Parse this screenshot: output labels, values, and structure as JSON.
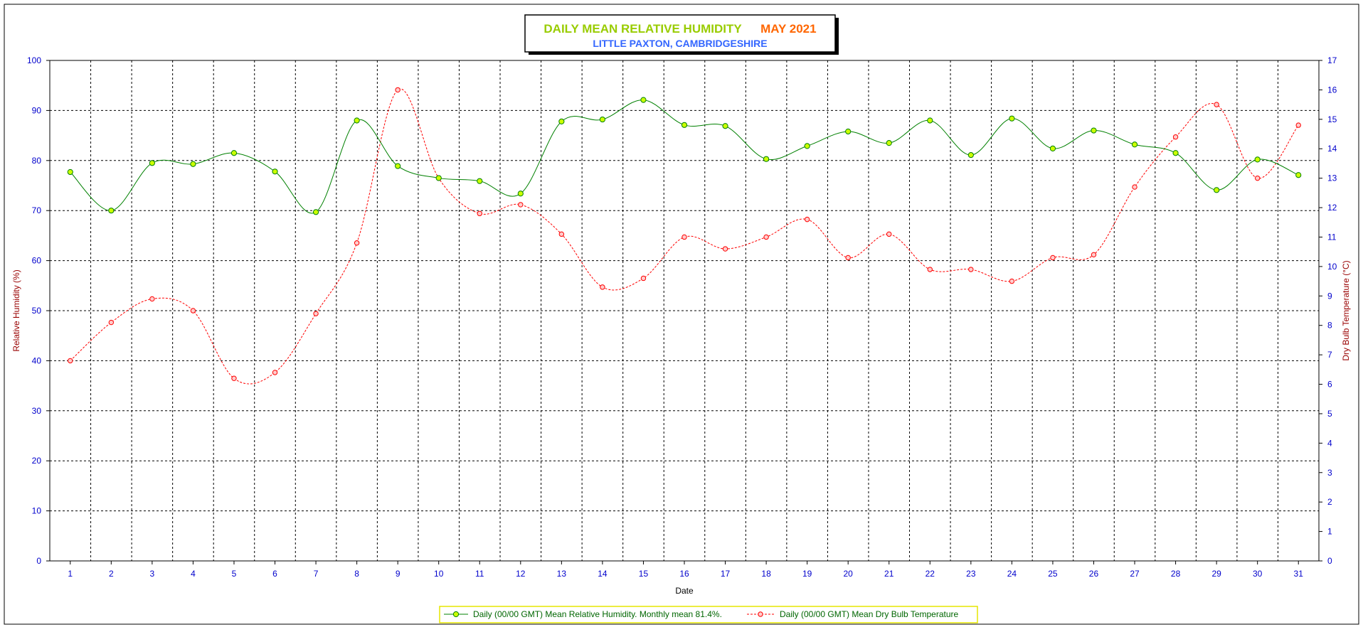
{
  "chart_data": {
    "type": "line",
    "title": {
      "main": "DAILY MEAN RELATIVE HUMIDITY",
      "period": "MAY 2021",
      "location": "LITTLE PAXTON, CAMBRIDGESHIRE"
    },
    "xlabel": "Date",
    "ylabel_left": "Relative Humidity (%)",
    "ylabel_right": "Dry Bulb Temperature (°C)",
    "categories": [
      "1",
      "2",
      "3",
      "4",
      "5",
      "6",
      "7",
      "8",
      "9",
      "10",
      "11",
      "12",
      "13",
      "14",
      "15",
      "16",
      "17",
      "18",
      "19",
      "20",
      "21",
      "22",
      "23",
      "24",
      "25",
      "26",
      "27",
      "28",
      "29",
      "30",
      "31"
    ],
    "left_axis": {
      "min": 0,
      "max": 100,
      "ticks": [
        0,
        10,
        20,
        30,
        40,
        50,
        60,
        70,
        80,
        90,
        100
      ]
    },
    "right_axis": {
      "min": 0,
      "max": 17,
      "ticks": [
        0,
        1,
        2,
        3,
        4,
        5,
        6,
        7,
        8,
        9,
        10,
        11,
        12,
        13,
        14,
        15,
        16,
        17
      ]
    },
    "grid": true,
    "legend_position": "bottom",
    "series": [
      {
        "name": "Daily (00/00 GMT) Mean Relative Humidity. Monthly mean 81.4%.",
        "axis": "left",
        "line_color": "#008000",
        "marker_color": "#ccff00",
        "line_style": "solid",
        "values": [
          77.7,
          70.0,
          79.5,
          79.3,
          81.5,
          77.8,
          69.7,
          88.0,
          78.9,
          76.5,
          75.9,
          73.4,
          87.8,
          88.2,
          92.1,
          87.1,
          86.9,
          80.3,
          82.9,
          85.8,
          83.5,
          88.0,
          81.1,
          88.4,
          82.4,
          86.0,
          83.2,
          81.5,
          74.1,
          80.2,
          77.1
        ]
      },
      {
        "name": "Daily (00/00 GMT) Mean Dry Bulb Temperature",
        "axis": "right",
        "line_color": "#ff0000",
        "marker_color": "#ffcccc",
        "line_style": "dashed",
        "values": [
          6.8,
          8.1,
          8.9,
          8.5,
          6.2,
          6.4,
          8.4,
          10.8,
          16.0,
          13.0,
          11.8,
          12.1,
          11.1,
          9.3,
          9.6,
          11.0,
          10.6,
          11.0,
          11.6,
          10.3,
          11.1,
          9.9,
          9.9,
          9.5,
          10.3,
          10.4,
          12.7,
          14.4,
          15.5,
          13.0,
          14.8
        ]
      }
    ]
  },
  "colors": {
    "title_main": "#99cc00",
    "title_period": "#ff6600",
    "title_location": "#3366ff",
    "axis_text": "#0000cc",
    "axis_title": "#990000",
    "xlabel": "#000000",
    "legend_text": "#006600",
    "legend_border": "#e6e600"
  }
}
